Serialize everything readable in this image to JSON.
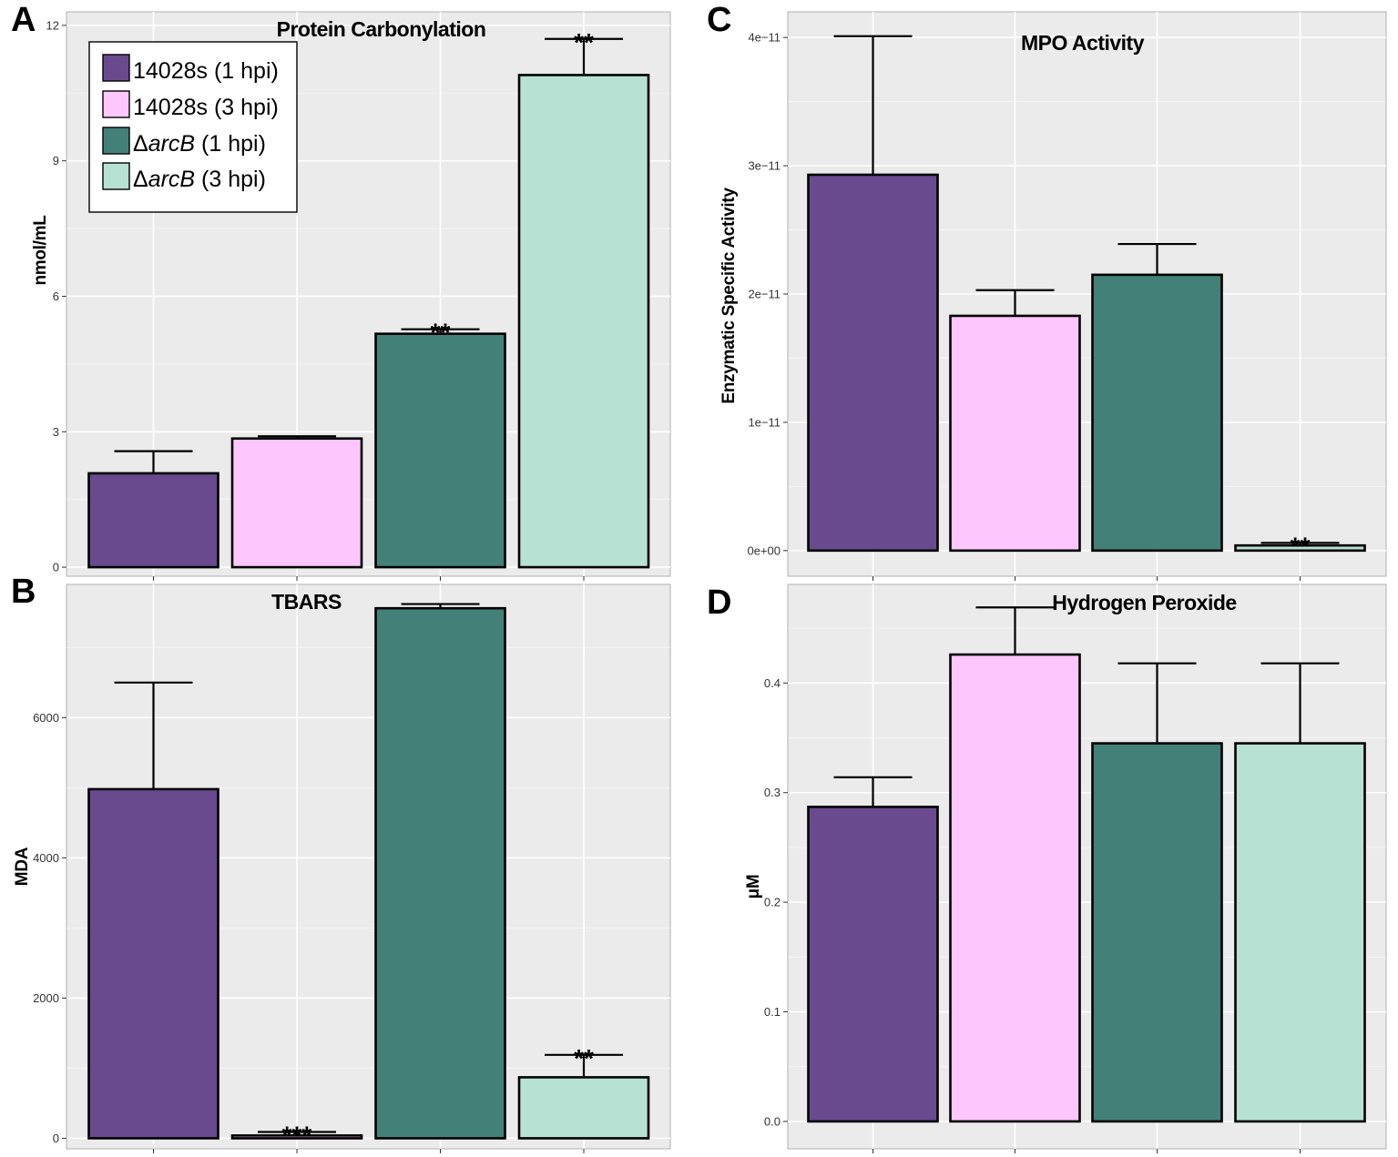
{
  "legend": {
    "entries": [
      {
        "prefix": "",
        "italic": "",
        "suffix": "14028s (1 hpi)",
        "color": "#694A8E"
      },
      {
        "prefix": "",
        "italic": "",
        "suffix": "14028s (3 hpi)",
        "color": "#FDC6FC"
      },
      {
        "prefix": "Δ",
        "italic": "arcB",
        "suffix": " (1 hpi)",
        "color": "#438178"
      },
      {
        "prefix": "Δ",
        "italic": "arcB",
        "suffix": " (3 hpi)",
        "color": "#B6E1D3"
      }
    ]
  },
  "colors": {
    "panel_background": "#EBEBEB",
    "grid": "#FFFFFF",
    "bar_outline": "#000000"
  },
  "chart_data": [
    {
      "panel": "A",
      "type": "bar",
      "title": "Protein Carbonylation",
      "xlabel": "",
      "ylabel": "nmol/mL",
      "ylim": [
        -0.2,
        12.3
      ],
      "yticks": [
        0,
        3,
        6,
        9,
        12
      ],
      "ytick_labels": [
        "0",
        "3",
        "6",
        "9",
        "12"
      ],
      "categories": [
        "14028s (1 hpi)",
        "14028s (3 hpi)",
        "ΔarcB (1 hpi)",
        "ΔarcB (3 hpi)"
      ],
      "values": [
        2.08,
        2.85,
        5.17,
        10.9
      ],
      "error_upper": [
        2.57,
        2.9,
        5.27,
        11.7
      ],
      "significance": [
        "",
        "",
        "**",
        "**"
      ],
      "legend": true
    },
    {
      "panel": "B",
      "type": "bar",
      "title": "TBARS",
      "xlabel": "",
      "ylabel": "MDA",
      "ylim": [
        -150,
        7900
      ],
      "yticks": [
        0,
        2000,
        4000,
        6000
      ],
      "ytick_labels": [
        "0",
        "2000",
        "4000",
        "6000"
      ],
      "categories": [
        "14028s (1 hpi)",
        "14028s (3 hpi)",
        "ΔarcB (1 hpi)",
        "ΔarcB (3 hpi)"
      ],
      "values": [
        4980,
        40,
        7560,
        870
      ],
      "error_upper": [
        6500,
        90,
        7620,
        1190
      ],
      "significance": [
        "",
        "***",
        "",
        "**"
      ],
      "legend": false
    },
    {
      "panel": "C",
      "type": "bar",
      "title": "MPO Activity",
      "xlabel": "",
      "ylabel": "Enzymatic Specific Activity",
      "ylim": [
        -2e-12,
        4.2e-11
      ],
      "yticks": [
        0,
        1e-11,
        2e-11,
        3e-11,
        4e-11
      ],
      "ytick_labels": [
        "0e+00",
        "1e−11",
        "2e−11",
        "3e−11",
        "4e−11"
      ],
      "categories": [
        "14028s (1 hpi)",
        "14028s (3 hpi)",
        "ΔarcB (1 hpi)",
        "ΔarcB (3 hpi)"
      ],
      "values": [
        2.93e-11,
        1.83e-11,
        2.15e-11,
        4e-13
      ],
      "error_upper": [
        4.01e-11,
        2.03e-11,
        2.39e-11,
        6e-13
      ],
      "significance": [
        "",
        "",
        "",
        "**"
      ],
      "legend": false
    },
    {
      "panel": "D",
      "type": "bar",
      "title": "Hydrogen Peroxide",
      "xlabel": "",
      "ylabel": "μM",
      "ylim": [
        -0.025,
        0.49
      ],
      "yticks": [
        0,
        0.1,
        0.2,
        0.3,
        0.4
      ],
      "ytick_labels": [
        "0.0",
        "0.1",
        "0.2",
        "0.3",
        "0.4"
      ],
      "categories": [
        "14028s (1 hpi)",
        "14028s (3 hpi)",
        "ΔarcB (1 hpi)",
        "ΔarcB (3 hpi)"
      ],
      "values": [
        0.287,
        0.426,
        0.345,
        0.345
      ],
      "error_upper": [
        0.314,
        0.469,
        0.418,
        0.418
      ],
      "significance": [
        "",
        "",
        "",
        ""
      ],
      "legend": false
    }
  ]
}
